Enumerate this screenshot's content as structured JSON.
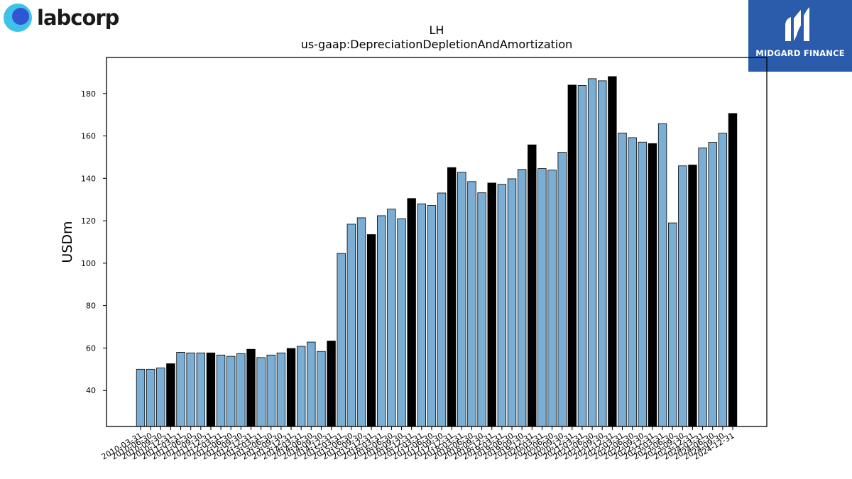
{
  "brand_left": {
    "name": "labcorp",
    "icon": "labcorp-circle-logo",
    "colors": [
      "#3fc2e8",
      "#3056d3"
    ]
  },
  "brand_right": {
    "name": "MIDGARD FINANCE",
    "icon": "midgard-m-logo",
    "background": "#2a5cab"
  },
  "chart_data": {
    "type": "bar",
    "title": "LH",
    "subtitle": "us-gaap:DepreciationDepletionAndAmortization",
    "xlabel": "",
    "ylabel": "USDm",
    "ylim": [
      23,
      197
    ],
    "yticks": [
      40,
      60,
      80,
      100,
      120,
      140,
      160,
      180
    ],
    "grid": false,
    "legend": "none",
    "colors": {
      "quarter": "#7aaed4",
      "annual": "#000000"
    },
    "categories": [
      "2010-03-31",
      "2010-06-30",
      "2010-09-30",
      "2010-12-31",
      "2011-03-31",
      "2011-06-30",
      "2011-09-30",
      "2011-12-31",
      "2012-03-31",
      "2012-06-30",
      "2012-09-30",
      "2012-12-31",
      "2013-03-31",
      "2013-06-30",
      "2013-09-30",
      "2013-12-31",
      "2014-03-31",
      "2014-06-30",
      "2014-09-30",
      "2014-12-31",
      "2015-03-31",
      "2015-06-30",
      "2015-09-30",
      "2015-12-31",
      "2016-03-31",
      "2016-06-30",
      "2016-09-30",
      "2016-12-31",
      "2017-03-31",
      "2017-06-30",
      "2017-09-30",
      "2017-12-31",
      "2018-03-31",
      "2018-06-30",
      "2018-09-30",
      "2018-12-31",
      "2019-03-31",
      "2019-06-30",
      "2019-09-30",
      "2019-12-31",
      "2020-03-31",
      "2020-06-30",
      "2020-09-30",
      "2020-12-31",
      "2021-03-31",
      "2021-06-30",
      "2021-09-30",
      "2021-12-31",
      "2022-03-31",
      "2022-06-30",
      "2022-09-30",
      "2022-12-31",
      "2023-03-31",
      "2023-06-30",
      "2023-09-30",
      "2023-12-31",
      "2024-03-31",
      "2024-06-30",
      "2024-09-30",
      "2024-12-31"
    ],
    "values": [
      50.0,
      50.0,
      50.6,
      52.6,
      58.0,
      57.7,
      57.7,
      57.7,
      56.7,
      56.1,
      57.4,
      59.4,
      55.5,
      56.7,
      57.7,
      59.8,
      60.8,
      62.8,
      58.4,
      63.3,
      104.6,
      118.4,
      121.4,
      113.5,
      122.4,
      125.5,
      121.0,
      130.5,
      128.0,
      127.2,
      133.1,
      145.1,
      142.9,
      138.5,
      133.2,
      137.8,
      137.2,
      139.8,
      144.2,
      155.8,
      144.6,
      143.9,
      152.3,
      184.0,
      183.8,
      187.0,
      186.0,
      188.0,
      161.4,
      159.2,
      157.1,
      156.4,
      165.8,
      119.0,
      145.9,
      146.3,
      154.4,
      157.0,
      161.3,
      170.6
    ],
    "annual_flags": [
      0,
      0,
      0,
      1,
      0,
      0,
      0,
      1,
      0,
      0,
      0,
      1,
      0,
      0,
      0,
      1,
      0,
      0,
      0,
      1,
      0,
      0,
      0,
      1,
      0,
      0,
      0,
      1,
      0,
      0,
      0,
      1,
      0,
      0,
      0,
      1,
      0,
      0,
      0,
      1,
      0,
      0,
      0,
      1,
      0,
      0,
      0,
      1,
      0,
      0,
      0,
      1,
      0,
      0,
      0,
      1,
      0,
      0,
      0,
      1
    ]
  }
}
